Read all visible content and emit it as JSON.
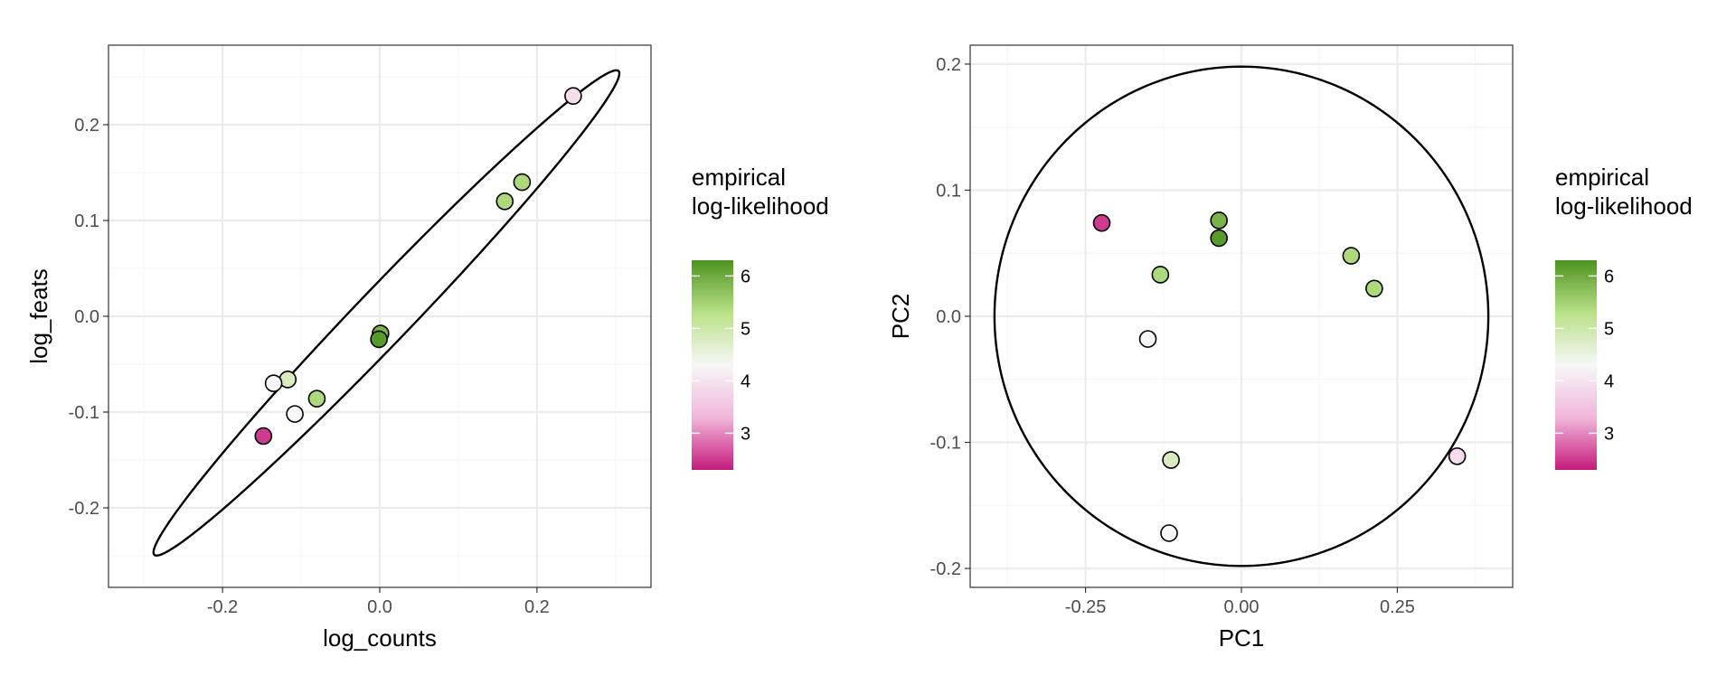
{
  "colors": {
    "background": "#ffffff",
    "panel_border": "#333333",
    "grid_major": "#ebebeb",
    "grid_minor": "#f5f5f5",
    "point_outline": "#000000",
    "ellipse": "#000000",
    "gradient": [
      "#c51b7d",
      "#f1b6da",
      "#f7f7f7",
      "#b8e186",
      "#4d9221"
    ]
  },
  "legend": {
    "title_line1": "empirical",
    "title_line2": "log-likelihood",
    "ticks": [
      "3",
      "4",
      "5",
      "6"
    ],
    "range": [
      2.3,
      6.3
    ]
  },
  "chart_data": [
    {
      "type": "scatter",
      "xlabel": "log_counts",
      "ylabel": "log_feats",
      "xlim": [
        -0.345,
        0.345
      ],
      "ylim": [
        -0.283,
        0.283
      ],
      "xticks": [
        "-0.2",
        "0.0",
        "0.2"
      ],
      "xtick_values": [
        -0.2,
        0.0,
        0.2
      ],
      "yticks": [
        "0.2",
        "0.1",
        "0.0",
        "-0.1",
        "-0.2"
      ],
      "ytick_values": [
        0.2,
        0.1,
        0.0,
        -0.1,
        -0.2
      ],
      "grid": true,
      "points": [
        {
          "x": 0.246,
          "y": 0.23,
          "ll": 3.9
        },
        {
          "x": 0.181,
          "y": 0.14,
          "ll": 5.4
        },
        {
          "x": 0.159,
          "y": 0.12,
          "ll": 5.4
        },
        {
          "x": 0.001,
          "y": -0.018,
          "ll": 5.9
        },
        {
          "x": -0.001,
          "y": -0.024,
          "ll": 6.2
        },
        {
          "x": -0.08,
          "y": -0.086,
          "ll": 5.4
        },
        {
          "x": -0.117,
          "y": -0.066,
          "ll": 4.8
        },
        {
          "x": -0.135,
          "y": -0.07,
          "ll": 4.3
        },
        {
          "x": -0.108,
          "y": -0.102,
          "ll": 4.3
        },
        {
          "x": -0.148,
          "y": -0.125,
          "ll": 2.5
        }
      ],
      "ellipse": {
        "center": [
          0.0085,
          0.0035
        ],
        "semi_major": 0.3885,
        "semi_minor": 0.0315,
        "angle_deg": 40.47
      }
    },
    {
      "type": "scatter",
      "xlabel": "PC1",
      "ylabel": "PC2",
      "xlim": [
        -0.435,
        0.435
      ],
      "ylim": [
        -0.215,
        0.215
      ],
      "xticks": [
        "-0.25",
        "0.00",
        "0.25"
      ],
      "xtick_values": [
        -0.25,
        0.0,
        0.25
      ],
      "yticks": [
        "0.2",
        "0.1",
        "0.0",
        "-0.1",
        "-0.2"
      ],
      "ytick_values": [
        0.2,
        0.1,
        0.0,
        -0.1,
        -0.2
      ],
      "grid": true,
      "points": [
        {
          "x": -0.224,
          "y": 0.074,
          "ll": 2.5
        },
        {
          "x": -0.036,
          "y": 0.076,
          "ll": 5.9
        },
        {
          "x": -0.036,
          "y": 0.062,
          "ll": 6.2
        },
        {
          "x": -0.13,
          "y": 0.033,
          "ll": 5.4
        },
        {
          "x": 0.176,
          "y": 0.048,
          "ll": 5.4
        },
        {
          "x": 0.213,
          "y": 0.022,
          "ll": 5.4
        },
        {
          "x": -0.15,
          "y": -0.018,
          "ll": 4.3
        },
        {
          "x": -0.113,
          "y": -0.114,
          "ll": 4.8
        },
        {
          "x": -0.116,
          "y": -0.172,
          "ll": 4.3
        },
        {
          "x": 0.346,
          "y": -0.111,
          "ll": 3.9
        }
      ],
      "ellipse": {
        "center": [
          0.0,
          0.0
        ],
        "semi_major": 0.396,
        "semi_minor": 0.198,
        "angle_deg": 0
      }
    }
  ]
}
